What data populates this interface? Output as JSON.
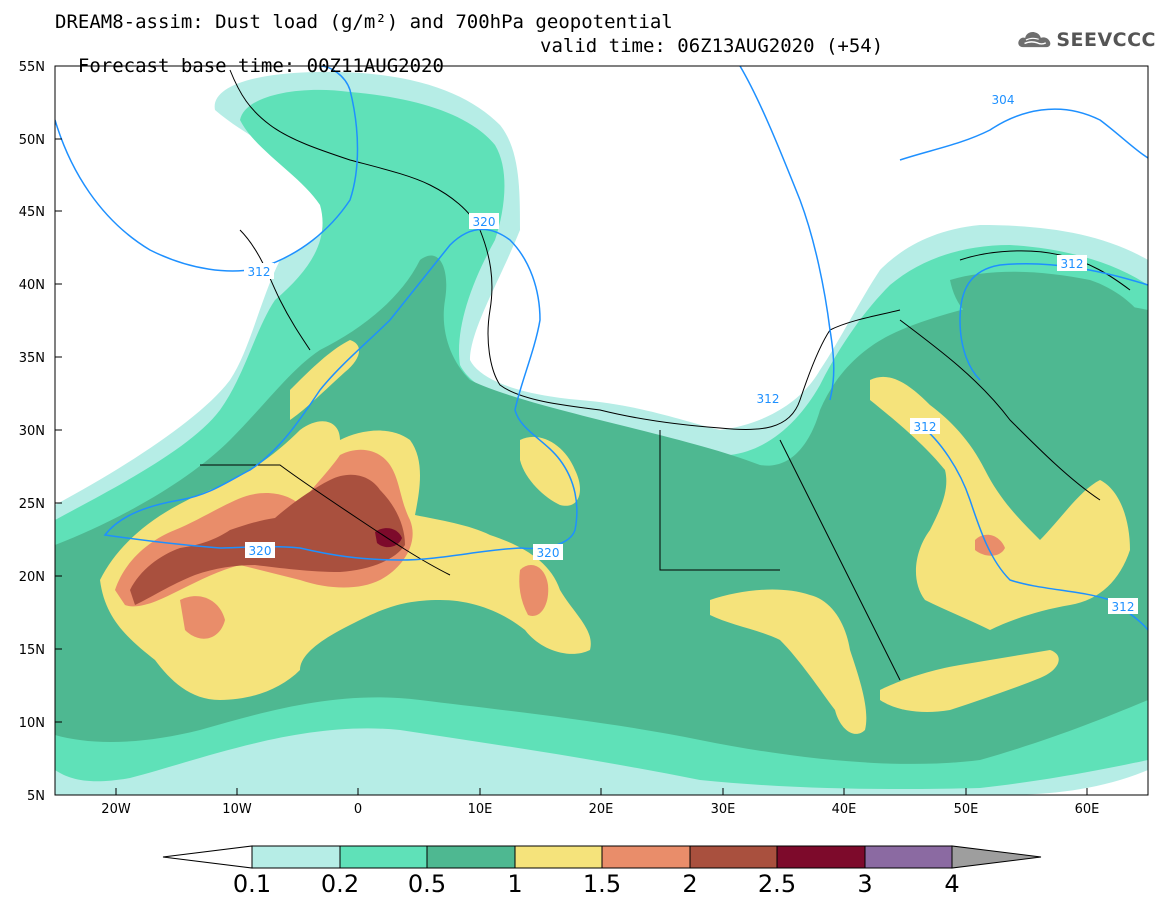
{
  "title": {
    "line1": "DREAM8-assim: Dust load (g/m²) and 700hPa geopotential",
    "base_time": "Forecast base time: 00Z11AUG2020",
    "valid_time": "valid time: 06Z13AUG2020 (+54)"
  },
  "logo": {
    "text": "SEEVCCC",
    "icon": "cloud-icon"
  },
  "axes": {
    "lat_labels": [
      "55N",
      "50N",
      "45N",
      "40N",
      "35N",
      "30N",
      "25N",
      "20N",
      "15N",
      "10N",
      "5N"
    ],
    "lon_labels": [
      "20W",
      "10W",
      "0",
      "10E",
      "20E",
      "30E",
      "40E",
      "50E",
      "60E"
    ]
  },
  "contours": {
    "color": "#1e90ff",
    "labels": [
      "304",
      "312",
      "312",
      "312",
      "312",
      "312",
      "320",
      "320",
      "320"
    ]
  },
  "colorbar": {
    "labels": [
      "0.1",
      "0.2",
      "0.5",
      "1",
      "1.5",
      "2",
      "2.5",
      "3",
      "4"
    ],
    "colors": [
      "#b6ede6",
      "#5fe1b8",
      "#4eb891",
      "#f5e37b",
      "#e98d6a",
      "#a9503e",
      "#7d0a2b",
      "#8b6aa2"
    ],
    "under_color": "#ffffff",
    "over_color": "#9e9e9e"
  },
  "map_colors": {
    "ocean_land_bg": "#ffffff",
    "border": "#000000"
  }
}
